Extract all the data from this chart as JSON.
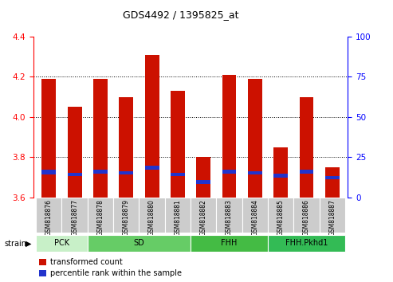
{
  "title": "GDS4492 / 1395825_at",
  "samples": [
    "GSM818876",
    "GSM818877",
    "GSM818878",
    "GSM818879",
    "GSM818880",
    "GSM818881",
    "GSM818882",
    "GSM818883",
    "GSM818884",
    "GSM818885",
    "GSM818886",
    "GSM818887"
  ],
  "bar_tops": [
    4.19,
    4.05,
    4.19,
    4.1,
    4.31,
    4.13,
    3.8,
    4.21,
    4.19,
    3.85,
    4.1,
    3.75
  ],
  "blue_bottoms": [
    3.715,
    3.705,
    3.718,
    3.715,
    3.738,
    3.705,
    3.665,
    3.718,
    3.715,
    3.698,
    3.718,
    3.69
  ],
  "blue_tops": [
    3.738,
    3.722,
    3.738,
    3.732,
    3.758,
    3.722,
    3.685,
    3.738,
    3.732,
    3.718,
    3.738,
    3.708
  ],
  "bar_bottom": 3.6,
  "groups": [
    {
      "label": "PCK",
      "start": 0,
      "end": 2,
      "color": "#c8f0c8"
    },
    {
      "label": "SD",
      "start": 2,
      "end": 6,
      "color": "#66cc66"
    },
    {
      "label": "FHH",
      "start": 6,
      "end": 9,
      "color": "#44bb44"
    },
    {
      "label": "FHH.Pkhd1",
      "start": 9,
      "end": 12,
      "color": "#33bb55"
    }
  ],
  "ylim_left": [
    3.6,
    4.4
  ],
  "ylim_right": [
    0,
    100
  ],
  "yticks_left": [
    3.6,
    3.8,
    4.0,
    4.2,
    4.4
  ],
  "yticks_right": [
    0,
    25,
    50,
    75,
    100
  ],
  "grid_lines": [
    3.8,
    4.0,
    4.2
  ],
  "bar_color": "#cc1100",
  "blue_color": "#2233cc",
  "legend_red": "transformed count",
  "legend_blue": "percentile rank within the sample",
  "strain_label": "strain"
}
